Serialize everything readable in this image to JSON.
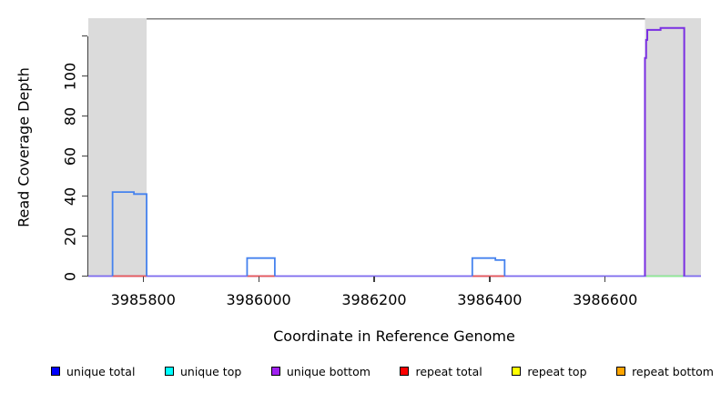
{
  "figure": {
    "y_axis_label": "Read Coverage Depth",
    "x_axis_label": "Coordinate in Reference Genome"
  },
  "chart_data": {
    "type": "line",
    "subtype": "step-coverage",
    "title": "",
    "xlabel": "Coordinate in Reference Genome",
    "ylabel": "Read Coverage Depth",
    "xlim": [
      3985705,
      3986766
    ],
    "ylim": [
      0,
      129
    ],
    "grid": false,
    "legend_position": "bottom",
    "x_ticks": [
      {
        "value": 3985800,
        "label": "3985800"
      },
      {
        "value": 3986000,
        "label": "3986000"
      },
      {
        "value": 3986200,
        "label": "3986200"
      },
      {
        "value": 3986400,
        "label": "3986400"
      },
      {
        "value": 3986600,
        "label": "3986600"
      }
    ],
    "y_ticks": [
      {
        "value": 0,
        "label": "0"
      },
      {
        "value": 20,
        "label": "20"
      },
      {
        "value": 40,
        "label": "40"
      },
      {
        "value": 60,
        "label": "60"
      },
      {
        "value": 80,
        "label": "80"
      },
      {
        "value": 100,
        "label": "100"
      },
      {
        "value": 120,
        "label": ""
      }
    ],
    "shaded_regions": [
      {
        "name": "left-gray-band",
        "x0": 3985705,
        "x1": 3985806,
        "color": "#dbdbdb"
      },
      {
        "name": "right-gray-band",
        "x0": 3986669,
        "x1": 3986766,
        "color": "#dbdbdb"
      }
    ],
    "top_border": {
      "x0": 3985806,
      "x1": 3986669,
      "color": "#808080"
    },
    "baselines": [
      {
        "name": "unique-bottom-zero-line",
        "color": "#7b68ee",
        "value": 0,
        "spans": [
          [
            3985705,
            3986766
          ]
        ]
      },
      {
        "name": "repeat-total-zero-line",
        "color": "#ea5755",
        "value": 0,
        "spans": [
          [
            3985747,
            3985806
          ],
          [
            3985980,
            3986028
          ],
          [
            3986370,
            3986426
          ]
        ]
      },
      {
        "name": "green-zero-line",
        "color": "#90ee90",
        "value": 0,
        "spans": [
          [
            3986671,
            3986735
          ]
        ]
      }
    ],
    "series": [
      {
        "name": "unique total",
        "color": "#4582ee",
        "stroke_width": 1.8,
        "segments": [
          [
            3985747,
            3985784,
            42
          ],
          [
            3985784,
            3985806,
            41
          ],
          [
            3985980,
            3986028,
            9
          ],
          [
            3986370,
            3986410,
            9
          ],
          [
            3986410,
            3986426,
            8
          ]
        ]
      },
      {
        "name": "unique bottom",
        "color": "#7a2fe2",
        "stroke_width": 2,
        "segments": [
          [
            3986669,
            3986671,
            109
          ],
          [
            3986671,
            3986673,
            118
          ],
          [
            3986673,
            3986696,
            123
          ],
          [
            3986696,
            3986737,
            124
          ]
        ]
      }
    ]
  },
  "legend": {
    "items": [
      {
        "label": "unique total",
        "color": "#0000ff"
      },
      {
        "label": "unique top",
        "color": "#00ffff"
      },
      {
        "label": "unique bottom",
        "color": "#a020f0"
      },
      {
        "label": "repeat total",
        "color": "#ff0000"
      },
      {
        "label": "repeat top",
        "color": "#ffff00"
      },
      {
        "label": "repeat bottom",
        "color": "#ffa500"
      }
    ]
  }
}
